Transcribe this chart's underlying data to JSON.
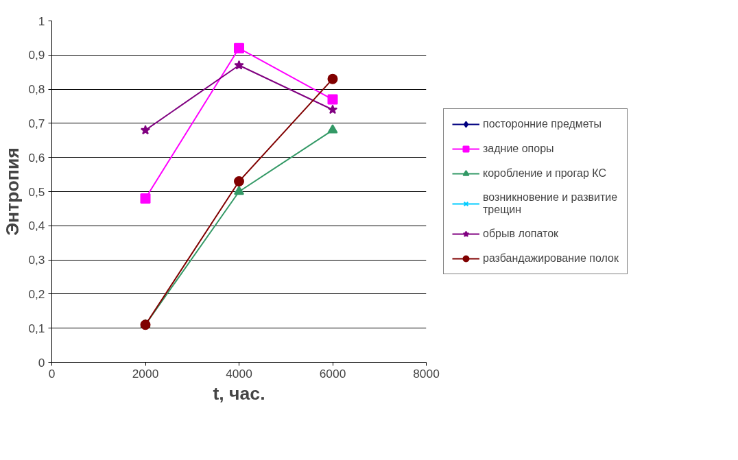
{
  "chart_data": {
    "type": "line",
    "xlabel": "t, час.",
    "ylabel": "Энтропия",
    "x": [
      2000,
      4000,
      6000
    ],
    "xlim": [
      0,
      8000
    ],
    "xticks": [
      0,
      2000,
      4000,
      6000,
      8000
    ],
    "ylim": [
      0,
      1
    ],
    "yticks": [
      {
        "value": 0,
        "label": "0"
      },
      {
        "value": 0.1,
        "label": "0,1"
      },
      {
        "value": 0.2,
        "label": "0,2"
      },
      {
        "value": 0.3,
        "label": "0,3"
      },
      {
        "value": 0.4,
        "label": "0,4"
      },
      {
        "value": 0.5,
        "label": "0,5"
      },
      {
        "value": 0.6,
        "label": "0,6"
      },
      {
        "value": 0.7,
        "label": "0,7"
      },
      {
        "value": 0.8,
        "label": "0,8"
      },
      {
        "value": 0.9,
        "label": "0,9"
      },
      {
        "value": 1,
        "label": "1"
      }
    ],
    "grid": "y",
    "legend": "right",
    "series": [
      {
        "name": "посторонние предметы",
        "color": "#000080",
        "marker": "diamond",
        "values": [
          null,
          null,
          null
        ]
      },
      {
        "name": "задние опоры",
        "color": "#ff00ff",
        "marker": "square",
        "values": [
          0.48,
          0.92,
          0.77
        ]
      },
      {
        "name": "коробление и прогар КС",
        "color": "#339966",
        "marker": "triangle",
        "values": [
          0.11,
          0.5,
          0.68
        ]
      },
      {
        "name": "возникновение и развитие трещин",
        "color": "#00ccff",
        "marker": "cross",
        "values": [
          null,
          null,
          null
        ]
      },
      {
        "name": "обрыв лопаток",
        "color": "#800080",
        "marker": "star",
        "values": [
          0.68,
          0.87,
          0.74
        ]
      },
      {
        "name": "разбандажирование полок",
        "color": "#800000",
        "marker": "circle",
        "values": [
          0.11,
          0.53,
          0.83
        ]
      }
    ]
  }
}
